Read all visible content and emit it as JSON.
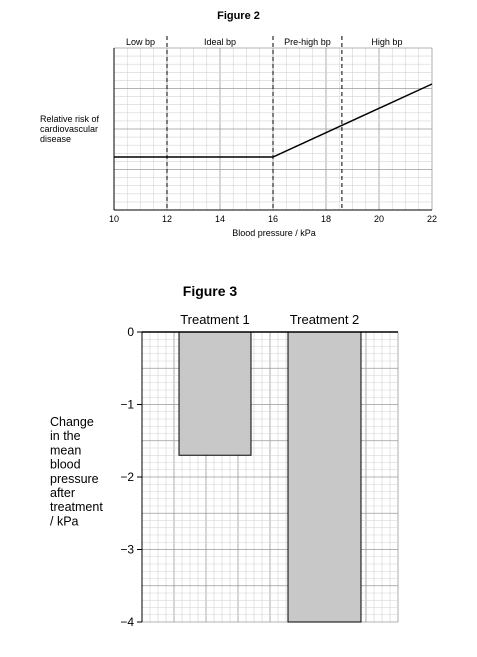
{
  "figures": [
    {
      "title": "Figure 2",
      "chart_data": {
        "type": "line",
        "title": "Figure 2",
        "xlabel": "Blood pressure / kPa",
        "ylabel": "Relative risk of cardiovascular disease",
        "xlim": [
          10,
          22
        ],
        "x_ticks": [
          "10",
          "12",
          "14",
          "16",
          "18",
          "20",
          "22"
        ],
        "y_ticks": [],
        "grid": true,
        "regions": [
          {
            "label": "Low bp",
            "from": 10,
            "to": 12
          },
          {
            "label": "Ideal bp",
            "from": 12,
            "to": 16
          },
          {
            "label": "Pre-high bp",
            "from": 16,
            "to": 18.6
          },
          {
            "label": "High bp",
            "from": 18.6,
            "to": 22
          }
        ],
        "series": [
          {
            "x": [
              10,
              16,
              22
            ],
            "y": [
              1,
              1,
              2.43
            ]
          }
        ]
      }
    },
    {
      "title": "Figure 3",
      "chart_data": {
        "type": "bar",
        "title": "Figure 3",
        "categories": [
          "Treatment 1",
          "Treatment 2"
        ],
        "values": [
          -1.7,
          -4.0
        ],
        "xlabel": "",
        "ylabel": "Change in the mean blood pressure after treatment / kPa",
        "ylabel_lines": [
          "Change",
          "in the",
          "mean",
          "blood",
          "pressure",
          "after",
          "treatment",
          "/ kPa"
        ],
        "ylim": [
          -4,
          0
        ],
        "y_ticks": [
          "0",
          "−1",
          "−2",
          "−3",
          "−4"
        ],
        "grid": true,
        "bar_color": "#c8c8c8"
      }
    }
  ]
}
